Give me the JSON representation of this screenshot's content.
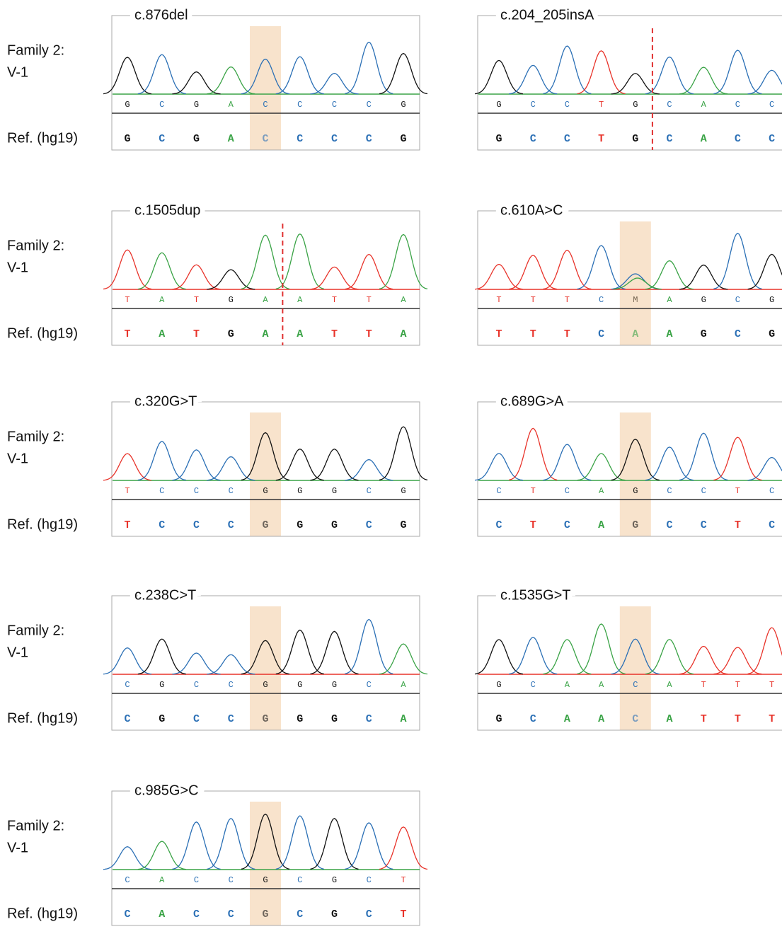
{
  "base_colors": {
    "A": "#3aa346",
    "C": "#2a6fb5",
    "G": "#111111",
    "T": "#e8332a",
    "M": "#7a6a55"
  },
  "rows": [
    {
      "sample": [
        "Family 2:",
        "V-1"
      ],
      "reference": "Ref. (hg19)",
      "panels": [
        {
          "title": "c.876del",
          "calls": [
            "G",
            "C",
            "G",
            "A",
            "C",
            "C",
            "C",
            "C",
            "G"
          ],
          "ref": [
            "G",
            "C",
            "G",
            "A",
            "C",
            "C",
            "C",
            "C",
            "G"
          ]
        },
        {
          "title": "c.204_205insA",
          "calls": [
            "G",
            "C",
            "C",
            "T",
            "G",
            "C",
            "A",
            "C",
            "C"
          ],
          "ref": [
            "G",
            "C",
            "C",
            "T",
            "G",
            "C",
            "A",
            "C",
            "C"
          ]
        }
      ]
    },
    {
      "sample": [
        "Family 2:",
        "V-1"
      ],
      "reference": "Ref. (hg19)",
      "panels": [
        {
          "title": "c.1505dup",
          "calls": [
            "T",
            "A",
            "T",
            "G",
            "A",
            "A",
            "T",
            "T",
            "A"
          ],
          "ref": [
            "T",
            "A",
            "T",
            "G",
            "A",
            "A",
            "T",
            "T",
            "A"
          ]
        },
        {
          "title": "c.610A>C",
          "calls": [
            "T",
            "T",
            "T",
            "C",
            "M",
            "A",
            "G",
            "C",
            "G"
          ],
          "ref": [
            "T",
            "T",
            "T",
            "C",
            "A",
            "A",
            "G",
            "C",
            "G"
          ]
        }
      ]
    },
    {
      "sample": [
        "Family 2:",
        "V-1"
      ],
      "reference": "Ref. (hg19)",
      "panels": [
        {
          "title": "c.320G>T",
          "calls": [
            "T",
            "C",
            "C",
            "C",
            "G",
            "G",
            "G",
            "C",
            "G"
          ],
          "ref": [
            "T",
            "C",
            "C",
            "C",
            "G",
            "G",
            "G",
            "C",
            "G"
          ]
        },
        {
          "title": "c.689G>A",
          "calls": [
            "C",
            "T",
            "C",
            "A",
            "G",
            "C",
            "C",
            "T",
            "C"
          ],
          "ref": [
            "C",
            "T",
            "C",
            "A",
            "G",
            "C",
            "C",
            "T",
            "C"
          ]
        }
      ]
    },
    {
      "sample": [
        "Family 2:",
        "V-1"
      ],
      "reference": "Ref. (hg19)",
      "panels": [
        {
          "title": "c.238C>T",
          "calls": [
            "C",
            "G",
            "C",
            "C",
            "G",
            "G",
            "G",
            "C",
            "A"
          ],
          "ref": [
            "C",
            "G",
            "C",
            "C",
            "G",
            "G",
            "G",
            "C",
            "A"
          ]
        },
        {
          "title": "c.1535G>T",
          "calls": [
            "G",
            "C",
            "A",
            "A",
            "C",
            "A",
            "T",
            "T",
            "T"
          ],
          "ref": [
            "G",
            "C",
            "A",
            "A",
            "C",
            "A",
            "T",
            "T",
            "T"
          ]
        }
      ]
    },
    {
      "sample": [
        "Family 2:",
        "V-1"
      ],
      "reference": "Ref. (hg19)",
      "panels": [
        {
          "title": "c.985G>C",
          "calls": [
            "C",
            "A",
            "C",
            "C",
            "G",
            "C",
            "G",
            "C",
            "T"
          ],
          "ref": [
            "C",
            "A",
            "C",
            "C",
            "G",
            "C",
            "G",
            "C",
            "T"
          ]
        }
      ]
    }
  ]
}
